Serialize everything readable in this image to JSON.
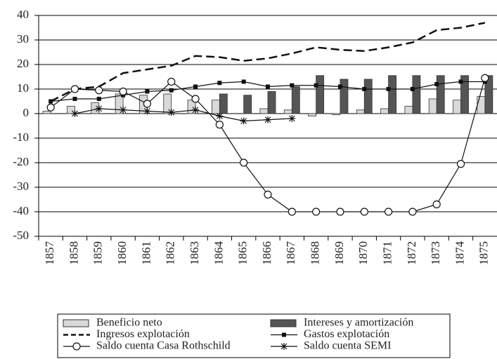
{
  "chart_data": {
    "type": "bar",
    "categories": [
      "1857",
      "1858",
      "1859",
      "1860",
      "1861",
      "1862",
      "1863",
      "1864",
      "1865",
      "1866",
      "1867",
      "1868",
      "1869",
      "1870",
      "1871",
      "1872",
      "1873",
      "1874",
      "1875"
    ],
    "ylim": [
      -50,
      40
    ],
    "yticks": [
      -50,
      -40,
      -30,
      -20,
      -10,
      0,
      10,
      20,
      30,
      40
    ],
    "grid": true,
    "legend": "bottom",
    "series": [
      {
        "name": "Beneficio neto",
        "type": "bar",
        "color": "#d9d9d9",
        "values": [
          1,
          3,
          4.5,
          8,
          7.5,
          8,
          5.5,
          5.5,
          0,
          2,
          1.5,
          -1,
          -0.5,
          1.5,
          2,
          3,
          6,
          5.5,
          7
        ]
      },
      {
        "name": "Intereses y amortización",
        "type": "bar",
        "color": "#555555",
        "values": [
          null,
          null,
          null,
          null,
          null,
          null,
          null,
          8,
          7.5,
          9,
          11,
          15.5,
          14,
          14,
          15.5,
          15.5,
          15.5,
          15.5,
          15.5
        ]
      },
      {
        "name": "Ingresos explotación",
        "type": "line",
        "style": "dashed",
        "color": "#111111",
        "values": [
          5,
          10,
          11,
          16.5,
          18,
          19.5,
          23.5,
          23,
          21.5,
          22.5,
          24.5,
          27,
          26,
          25.5,
          27,
          29,
          34,
          35,
          37
        ]
      },
      {
        "name": "Gastos explotación",
        "type": "line",
        "marker": "square",
        "color": "#111111",
        "values": [
          5,
          6,
          6,
          7.5,
          9,
          9.5,
          11,
          12.5,
          13,
          11,
          11.5,
          11.5,
          11,
          10,
          10,
          10,
          12,
          13,
          13
        ]
      },
      {
        "name": "Saldo cuenta Casa Rothschild",
        "type": "line",
        "marker": "circle",
        "color": "#111111",
        "values": [
          2.5,
          10,
          9.5,
          9,
          4,
          13,
          6,
          -4.5,
          -20,
          -33,
          -40,
          -40,
          -40,
          -40,
          -40,
          -40,
          -37,
          -20.5,
          14.5
        ]
      },
      {
        "name": "Saldo cuenta SEMI",
        "type": "line",
        "marker": "star",
        "color": "#111111",
        "values": [
          null,
          0,
          2,
          1.5,
          1,
          0.5,
          1.5,
          -1,
          -3,
          -2.5,
          -2,
          null,
          null,
          null,
          null,
          null,
          null,
          null,
          null
        ]
      }
    ]
  }
}
